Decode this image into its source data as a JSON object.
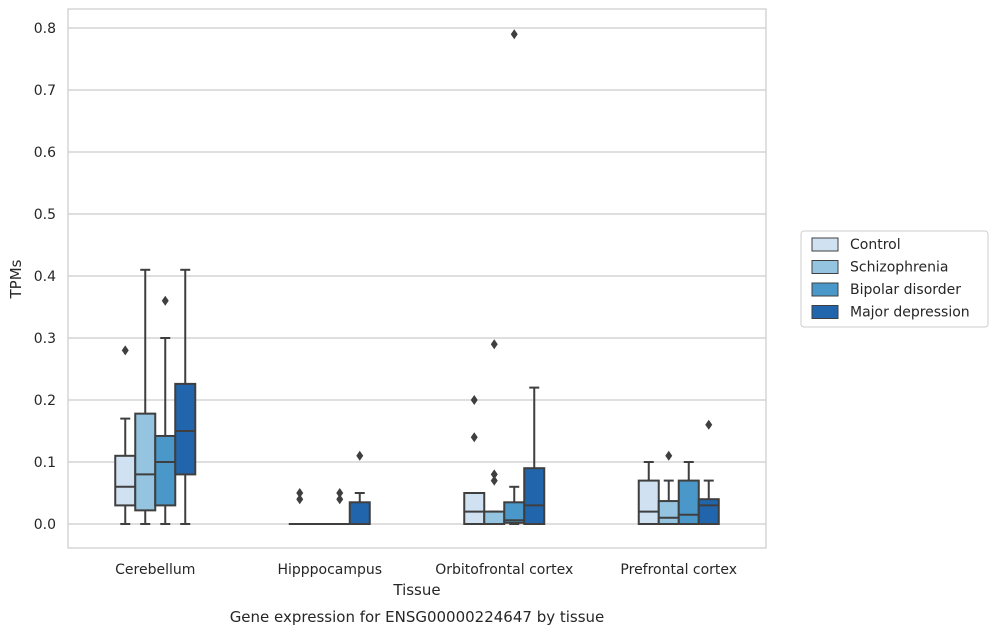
{
  "chart_data": {
    "type": "box",
    "xlabel": "Tissue",
    "ylabel": "TPMs",
    "caption": "Gene expression for ENSG00000224647 by tissue",
    "ylim": [
      -0.04,
      0.83
    ],
    "yticks": [
      "0.0",
      "0.1",
      "0.2",
      "0.3",
      "0.4",
      "0.5",
      "0.6",
      "0.7",
      "0.8"
    ],
    "ytick_values": [
      0.0,
      0.1,
      0.2,
      0.3,
      0.4,
      0.5,
      0.6,
      0.7,
      0.8
    ],
    "grid": "horizontal",
    "legend_position": "outside-right",
    "categories": [
      "Cerebellum",
      "Hipppocampus",
      "Orbitofrontal cortex",
      "Prefrontal cortex"
    ],
    "series": [
      {
        "name": "Control",
        "color": "#d0e1f2",
        "boxes": [
          {
            "whislo": 0.0,
            "q1": 0.03,
            "med": 0.06,
            "q3": 0.11,
            "whishi": 0.17,
            "fliers": [
              0.28
            ]
          },
          {
            "whislo": 0.0,
            "q1": 0.0,
            "med": 0.0,
            "q3": 0.0,
            "whishi": 0.0,
            "fliers": [
              0.04,
              0.05
            ]
          },
          {
            "whislo": 0.0,
            "q1": 0.0,
            "med": 0.02,
            "q3": 0.05,
            "whishi": 0.05,
            "fliers": [
              0.14,
              0.2
            ]
          },
          {
            "whislo": 0.0,
            "q1": 0.0,
            "med": 0.02,
            "q3": 0.07,
            "whishi": 0.1,
            "fliers": []
          }
        ]
      },
      {
        "name": "Schizophrenia",
        "color": "#94c4df",
        "boxes": [
          {
            "whislo": 0.0,
            "q1": 0.022,
            "med": 0.08,
            "q3": 0.178,
            "whishi": 0.41,
            "fliers": []
          },
          {
            "whislo": 0.0,
            "q1": 0.0,
            "med": 0.0,
            "q3": 0.0,
            "whishi": 0.0,
            "fliers": []
          },
          {
            "whislo": 0.0,
            "q1": 0.0,
            "med": 0.0,
            "q3": 0.02,
            "whishi": 0.02,
            "fliers": [
              0.07,
              0.08,
              0.29
            ]
          },
          {
            "whislo": 0.0,
            "q1": 0.0,
            "med": 0.01,
            "q3": 0.037,
            "whishi": 0.07,
            "fliers": [
              0.11
            ]
          }
        ]
      },
      {
        "name": "Bipolar disorder",
        "color": "#4a98c9",
        "boxes": [
          {
            "whislo": 0.0,
            "q1": 0.03,
            "med": 0.1,
            "q3": 0.142,
            "whishi": 0.3,
            "fliers": [
              0.36
            ]
          },
          {
            "whislo": 0.0,
            "q1": 0.0,
            "med": 0.0,
            "q3": 0.0,
            "whishi": 0.0,
            "fliers": [
              0.04,
              0.05
            ]
          },
          {
            "whislo": 0.0,
            "q1": 0.002,
            "med": 0.006,
            "q3": 0.035,
            "whishi": 0.06,
            "fliers": [
              0.79
            ]
          },
          {
            "whislo": 0.0,
            "q1": 0.0,
            "med": 0.015,
            "q3": 0.07,
            "whishi": 0.1,
            "fliers": []
          }
        ]
      },
      {
        "name": "Major depression",
        "color": "#2166ac",
        "boxes": [
          {
            "whislo": 0.0,
            "q1": 0.08,
            "med": 0.15,
            "q3": 0.226,
            "whishi": 0.41,
            "fliers": []
          },
          {
            "whislo": 0.0,
            "q1": 0.0,
            "med": 0.0,
            "q3": 0.035,
            "whishi": 0.05,
            "fliers": [
              0.11
            ]
          },
          {
            "whislo": 0.0,
            "q1": 0.0,
            "med": 0.03,
            "q3": 0.09,
            "whishi": 0.22,
            "fliers": []
          },
          {
            "whislo": 0.0,
            "q1": 0.0,
            "med": 0.03,
            "q3": 0.04,
            "whishi": 0.07,
            "fliers": [
              0.16
            ]
          }
        ]
      }
    ]
  }
}
